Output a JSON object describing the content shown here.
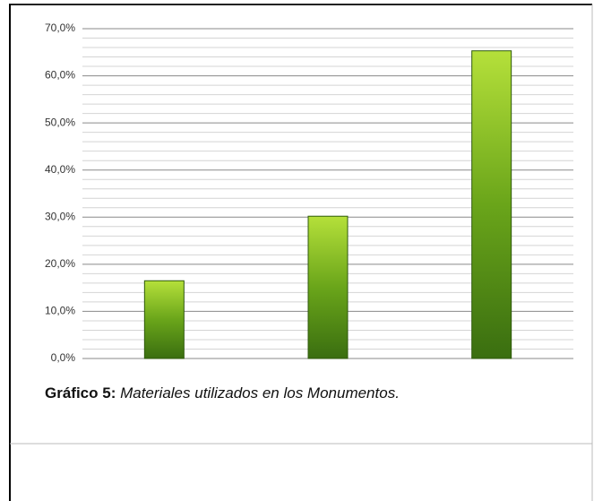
{
  "chart_data": {
    "type": "bar",
    "caption_label": "Gráfico 5:",
    "caption": "Materiales utilizados en  los Monumentos.",
    "categories": [
      null,
      null,
      null
    ],
    "values": [
      16.5,
      30.2,
      65.3
    ],
    "color": "#6aa51a",
    "ylim": [
      0,
      70
    ],
    "yticks": [
      {
        "value": 0,
        "label": "0,0%"
      },
      {
        "value": 10,
        "label": "10,0%"
      },
      {
        "value": 20,
        "label": "20,0%"
      },
      {
        "value": 30,
        "label": "30,0%"
      },
      {
        "value": 40,
        "label": "40,0%"
      },
      {
        "value": 50,
        "label": "50,0%"
      },
      {
        "value": 60,
        "label": "60,0%"
      },
      {
        "value": 70,
        "label": "70,0%"
      }
    ],
    "minor_yticks": [
      2,
      4,
      6,
      8,
      12,
      14,
      16,
      18,
      22,
      24,
      26,
      28,
      32,
      34,
      36,
      38,
      42,
      44,
      46,
      48,
      52,
      54,
      56,
      58,
      62,
      64,
      66,
      68
    ],
    "grid": true
  }
}
